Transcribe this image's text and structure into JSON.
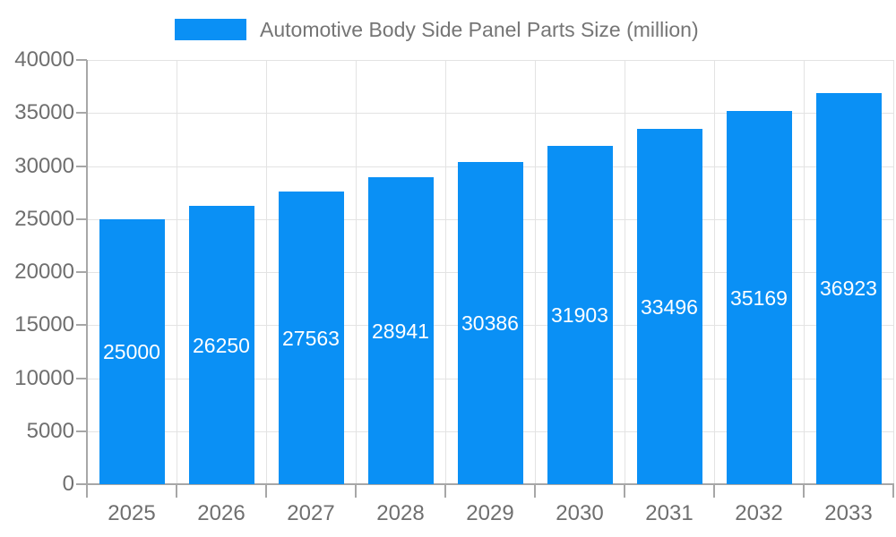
{
  "page": {
    "background": "#ffffff"
  },
  "colors": {
    "bar": "#0A90F5",
    "axis_line": "#a7a7a7",
    "grid_line": "#e3e3e3",
    "tick_text": "#6f6f6f",
    "title_text": "#757575",
    "bar_label_text": "#ffffff"
  },
  "chart_data": {
    "type": "bar",
    "title": "Automotive Body Side Panel Parts Size (million)",
    "categories": [
      "2025",
      "2026",
      "2027",
      "2028",
      "2029",
      "2030",
      "2031",
      "2032",
      "2033"
    ],
    "values": [
      25000,
      26250,
      27563,
      28941,
      30386,
      31903,
      33496,
      35169,
      36923
    ],
    "bar_value_labels_shown": true,
    "xlabel": "",
    "ylabel": "",
    "ylim": [
      0,
      40000
    ],
    "y_ticks": [
      0,
      5000,
      10000,
      15000,
      20000,
      25000,
      30000,
      35000,
      40000
    ],
    "grid": true,
    "legend_position": "top-center"
  }
}
